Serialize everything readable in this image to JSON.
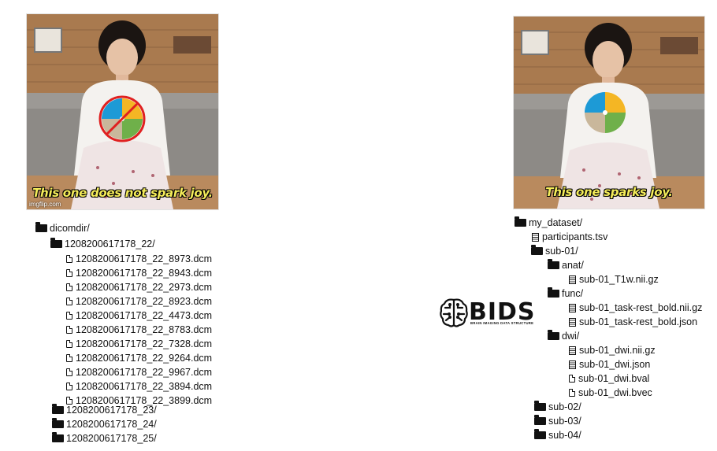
{
  "left_meme": {
    "caption": "This one does not spark joy.",
    "watermark": "imgflip.com"
  },
  "right_meme": {
    "caption": "This one sparks joy."
  },
  "left_tree": {
    "root": "dicomdir/",
    "subfolder": "1208200617178_22/",
    "files": [
      "1208200617178_22_8973.dcm",
      "1208200617178_22_8943.dcm",
      "1208200617178_22_2973.dcm",
      "1208200617178_22_8923.dcm",
      "1208200617178_22_4473.dcm",
      "1208200617178_22_8783.dcm",
      "1208200617178_22_7328.dcm",
      "1208200617178_22_9264.dcm",
      "1208200617178_22_9967.dcm",
      "1208200617178_22_3894.dcm",
      "1208200617178_22_3899.dcm"
    ],
    "other_folders": [
      "1208200617178_23/",
      "1208200617178_24/",
      "1208200617178_25/"
    ]
  },
  "bids_logo": {
    "word": "BIDS",
    "subtitle": "BRAIN IMAGING DATA STRUCTURE"
  },
  "right_tree": {
    "root": "my_dataset/",
    "participants": "participants.tsv",
    "sub01": "sub-01/",
    "anat": "anat/",
    "anat_file": "sub-01_T1w.nii.gz",
    "func": "func/",
    "func_files": [
      "sub-01_task-rest_bold.nii.gz",
      "sub-01_task-rest_bold.json"
    ],
    "dwi": "dwi/",
    "dwi_files": [
      "sub-01_dwi.nii.gz",
      "sub-01_dwi.json",
      "sub-01_dwi.bval",
      "sub-01_dwi.bvec"
    ],
    "other_subjects": [
      "sub-02/",
      "sub-03/",
      "sub-04/"
    ]
  }
}
